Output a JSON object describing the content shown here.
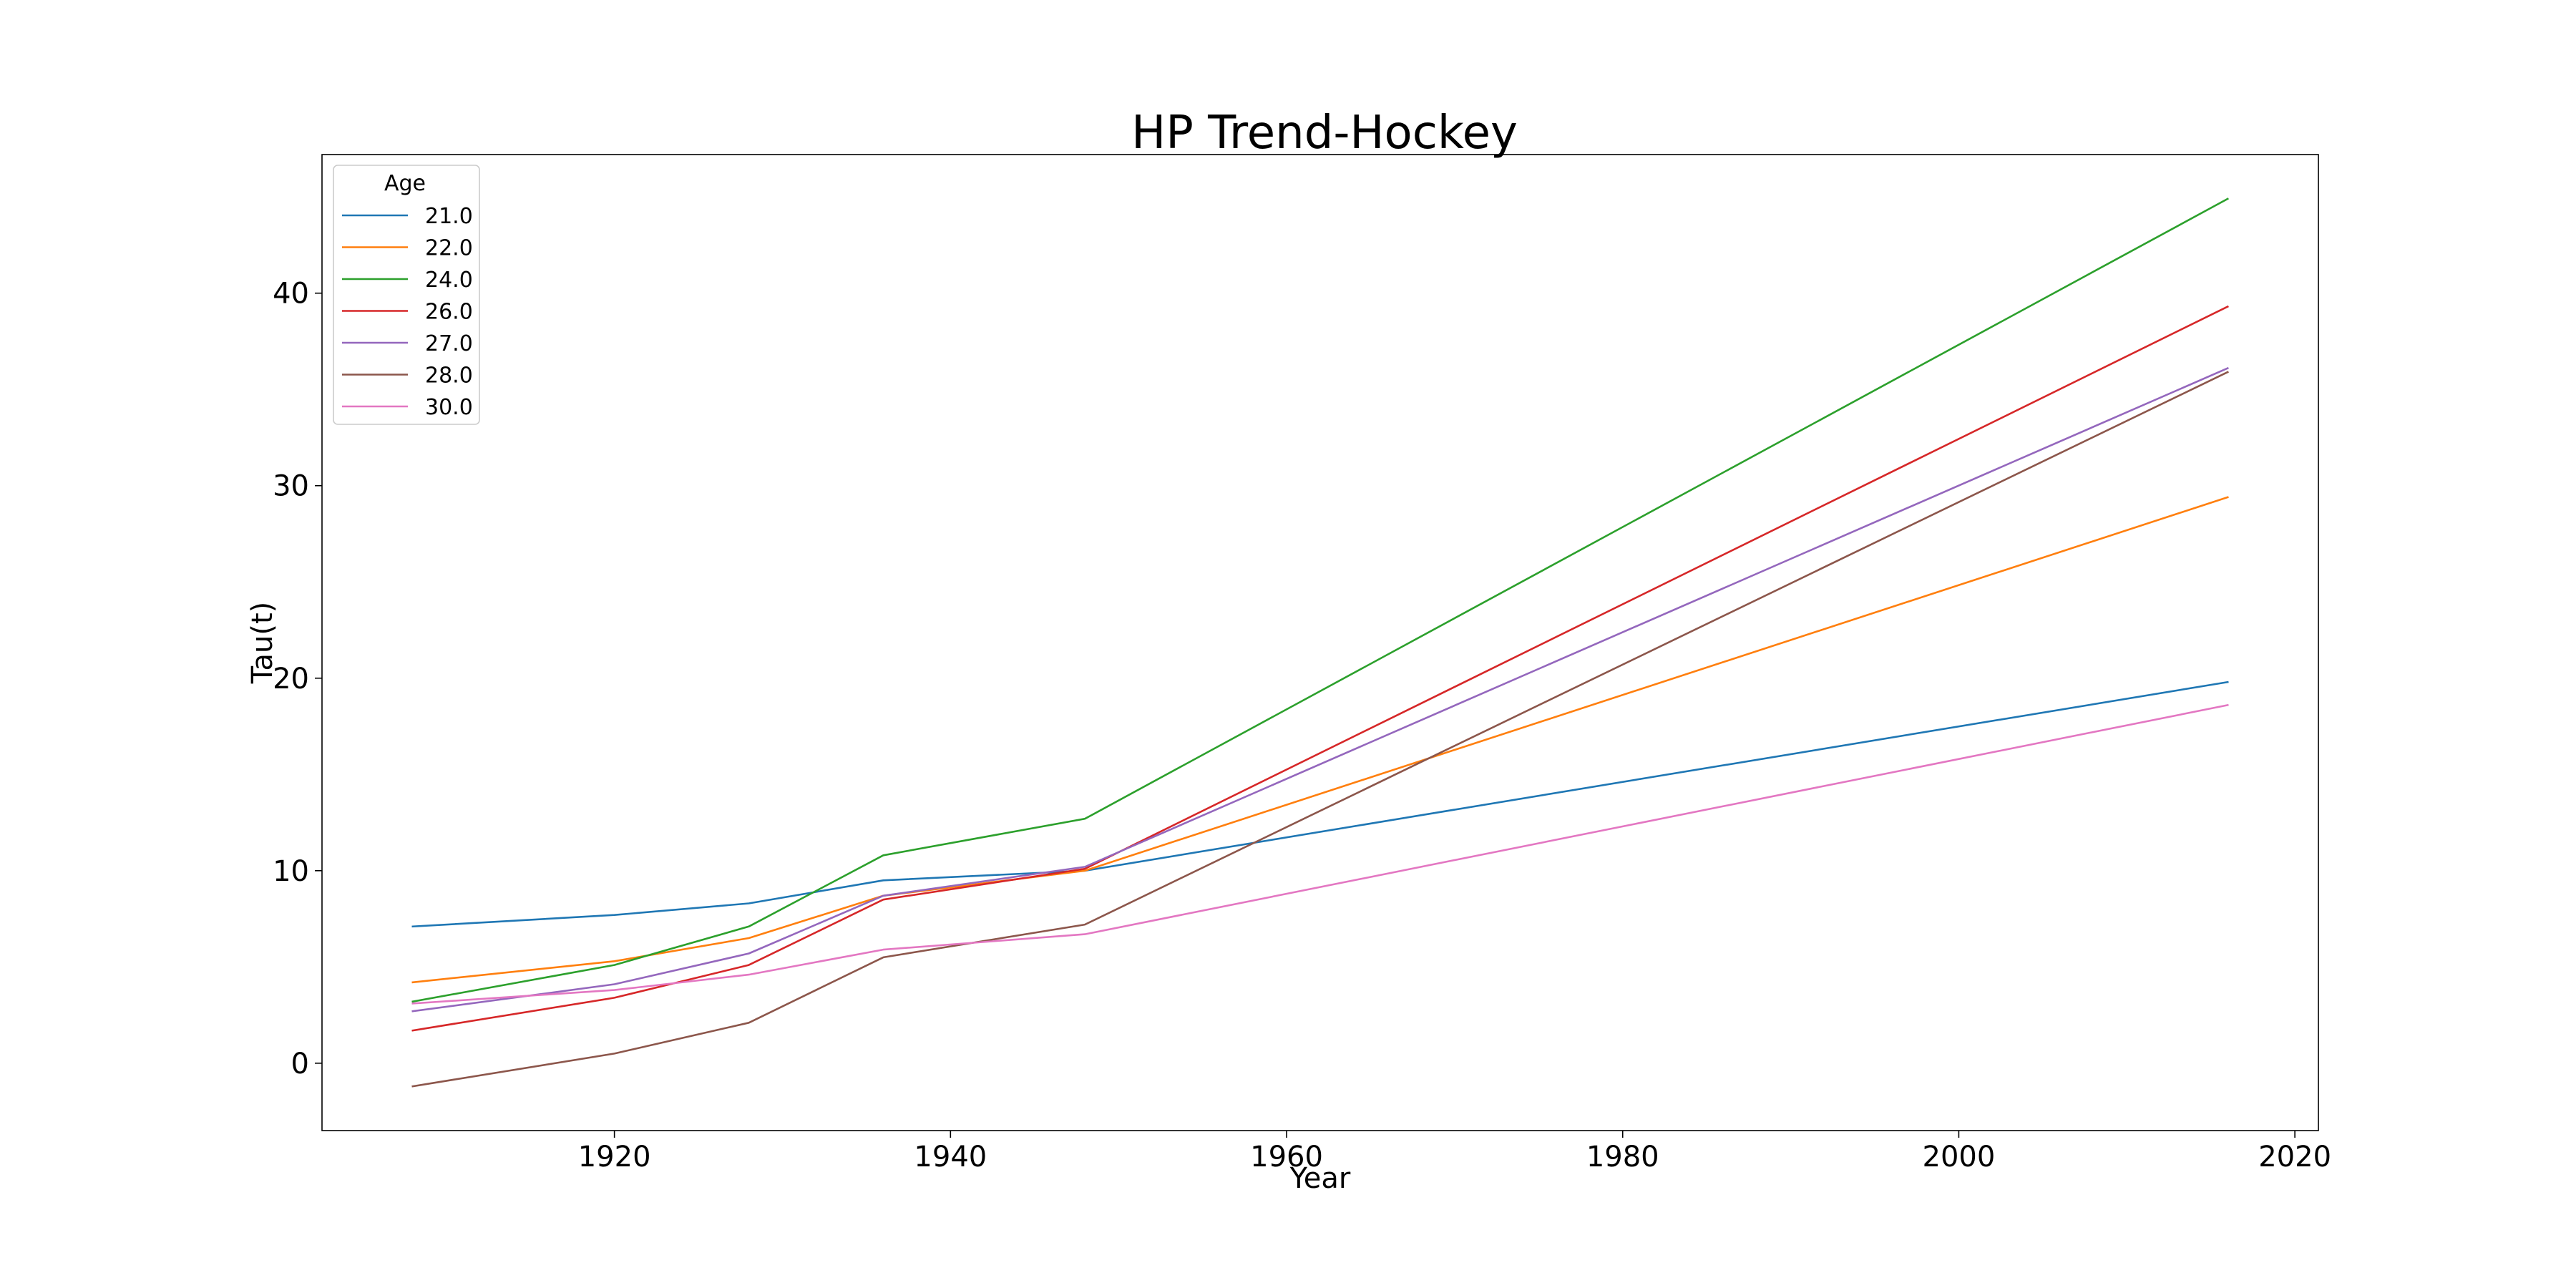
{
  "chart_data": {
    "type": "line",
    "title": "HP Trend-Hockey",
    "xlabel": "Year",
    "ylabel": "Tau(t)",
    "xlim": [
      1902.6,
      2021.4
    ],
    "ylim": [
      -3.5,
      47.2
    ],
    "xticks": [
      1920,
      1940,
      1960,
      1980,
      2000,
      2020
    ],
    "yticks": [
      0,
      10,
      20,
      30,
      40
    ],
    "grid": false,
    "legend": {
      "title": "Age",
      "position": "upper-left"
    },
    "x": [
      1908,
      1920,
      1928,
      1936,
      1948,
      2016
    ],
    "series": [
      {
        "name": "21.0",
        "color": "#1f77b4",
        "values": [
          7.1,
          7.7,
          8.3,
          9.5,
          10.0,
          19.8
        ]
      },
      {
        "name": "22.0",
        "color": "#ff7f0e",
        "values": [
          4.2,
          5.3,
          6.5,
          8.7,
          10.0,
          29.4
        ]
      },
      {
        "name": "24.0",
        "color": "#2ca02c",
        "values": [
          3.2,
          5.1,
          7.1,
          10.8,
          12.7,
          44.9
        ]
      },
      {
        "name": "26.0",
        "color": "#d62728",
        "values": [
          1.7,
          3.4,
          5.1,
          8.5,
          10.1,
          39.3
        ]
      },
      {
        "name": "27.0",
        "color": "#9467bd",
        "values": [
          2.7,
          4.1,
          5.7,
          8.7,
          10.2,
          36.1
        ]
      },
      {
        "name": "28.0",
        "color": "#8c564b",
        "values": [
          -1.2,
          0.5,
          2.1,
          5.5,
          7.2,
          35.9
        ]
      },
      {
        "name": "30.0",
        "color": "#e377c2",
        "values": [
          3.1,
          3.8,
          4.6,
          5.9,
          6.7,
          18.6
        ]
      }
    ]
  }
}
